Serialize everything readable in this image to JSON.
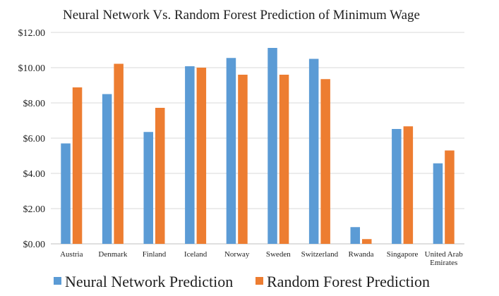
{
  "chart_data": {
    "type": "bar",
    "title": "Neural Network Vs. Random Forest Prediction of Minimum Wage",
    "xlabel": "",
    "ylabel": "",
    "ylim": [
      0,
      12
    ],
    "yticks": [
      "$0.00",
      "$2.00",
      "$4.00",
      "$6.00",
      "$8.00",
      "$10.00",
      "$12.00"
    ],
    "categories": [
      [
        "Austria"
      ],
      [
        "Denmark"
      ],
      [
        "Finland"
      ],
      [
        "Iceland"
      ],
      [
        "Norway"
      ],
      [
        "Sweden"
      ],
      [
        "Switzerland"
      ],
      [
        "Rwanda"
      ],
      [
        "Singapore"
      ],
      [
        "United Arab",
        "Emirates"
      ]
    ],
    "series": [
      {
        "name": "Neural Network Prediction",
        "color": "#5B9BD5",
        "values": [
          5.7,
          8.5,
          6.35,
          10.08,
          10.55,
          11.12,
          10.5,
          0.95,
          6.52,
          4.57
        ]
      },
      {
        "name": "Random Forest Prediction",
        "color": "#ED7D31",
        "values": [
          8.88,
          10.22,
          7.72,
          10.0,
          9.6,
          9.6,
          9.35,
          0.27,
          6.67,
          5.3
        ]
      }
    ],
    "grid": true,
    "legend_position": "bottom",
    "gridline_color": "#d9d9d9",
    "axis_color": "#bfbfbf"
  }
}
